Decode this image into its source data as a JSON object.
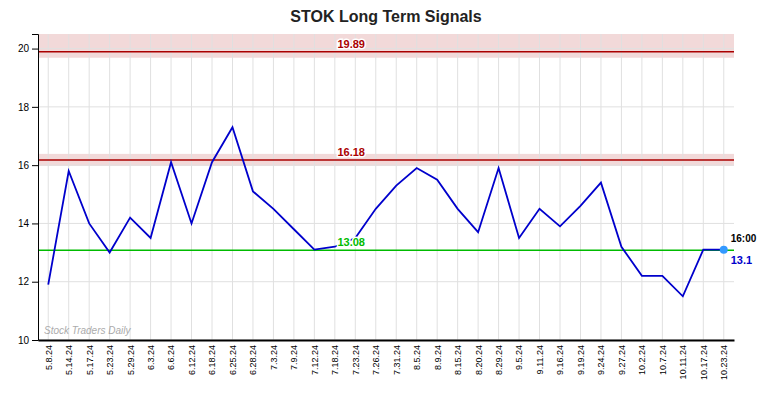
{
  "chart_data": {
    "type": "line",
    "title": "STOK Long Term Signals",
    "categories": [
      "5.8.24",
      "5.14.24",
      "5.17.24",
      "5.23.24",
      "5.29.24",
      "6.3.24",
      "6.6.24",
      "6.12.24",
      "6.18.24",
      "6.25.24",
      "6.28.24",
      "7.3.24",
      "7.9.24",
      "7.12.24",
      "7.18.24",
      "7.23.24",
      "7.26.24",
      "7.31.24",
      "8.5.24",
      "8.9.24",
      "8.15.24",
      "8.20.24",
      "8.29.24",
      "9.5.24",
      "9.11.24",
      "9.16.24",
      "9.19.24",
      "9.24.24",
      "9.27.24",
      "10.2.24",
      "10.7.24",
      "10.11.24",
      "10.17.24",
      "10.23.24"
    ],
    "values": [
      11.9,
      15.8,
      14.0,
      13.0,
      14.2,
      13.5,
      16.1,
      14.0,
      16.1,
      17.3,
      15.1,
      14.5,
      13.8,
      13.1,
      13.2,
      13.5,
      14.5,
      15.3,
      15.9,
      15.5,
      14.5,
      13.7,
      15.9,
      13.5,
      14.5,
      13.9,
      14.6,
      15.4,
      13.2,
      12.2,
      12.2,
      11.5,
      13.1,
      13.1
    ],
    "color": "#0000cc",
    "reference_lines": [
      {
        "value": 19.89,
        "label": "19.89",
        "color": "#aa0000"
      },
      {
        "value": 16.18,
        "label": "16.18",
        "color": "#aa0000"
      },
      {
        "value": 13.08,
        "label": "13.08",
        "color": "#00bb00"
      }
    ],
    "last_point": {
      "value": 13.1,
      "label": "13.1",
      "time": "16:00",
      "color": "#3399ff"
    },
    "watermark": "Stock Traders Daily",
    "ylim": [
      10,
      20.5
    ],
    "yticks": [
      10,
      12,
      14,
      16,
      18,
      20
    ],
    "grid": true
  }
}
